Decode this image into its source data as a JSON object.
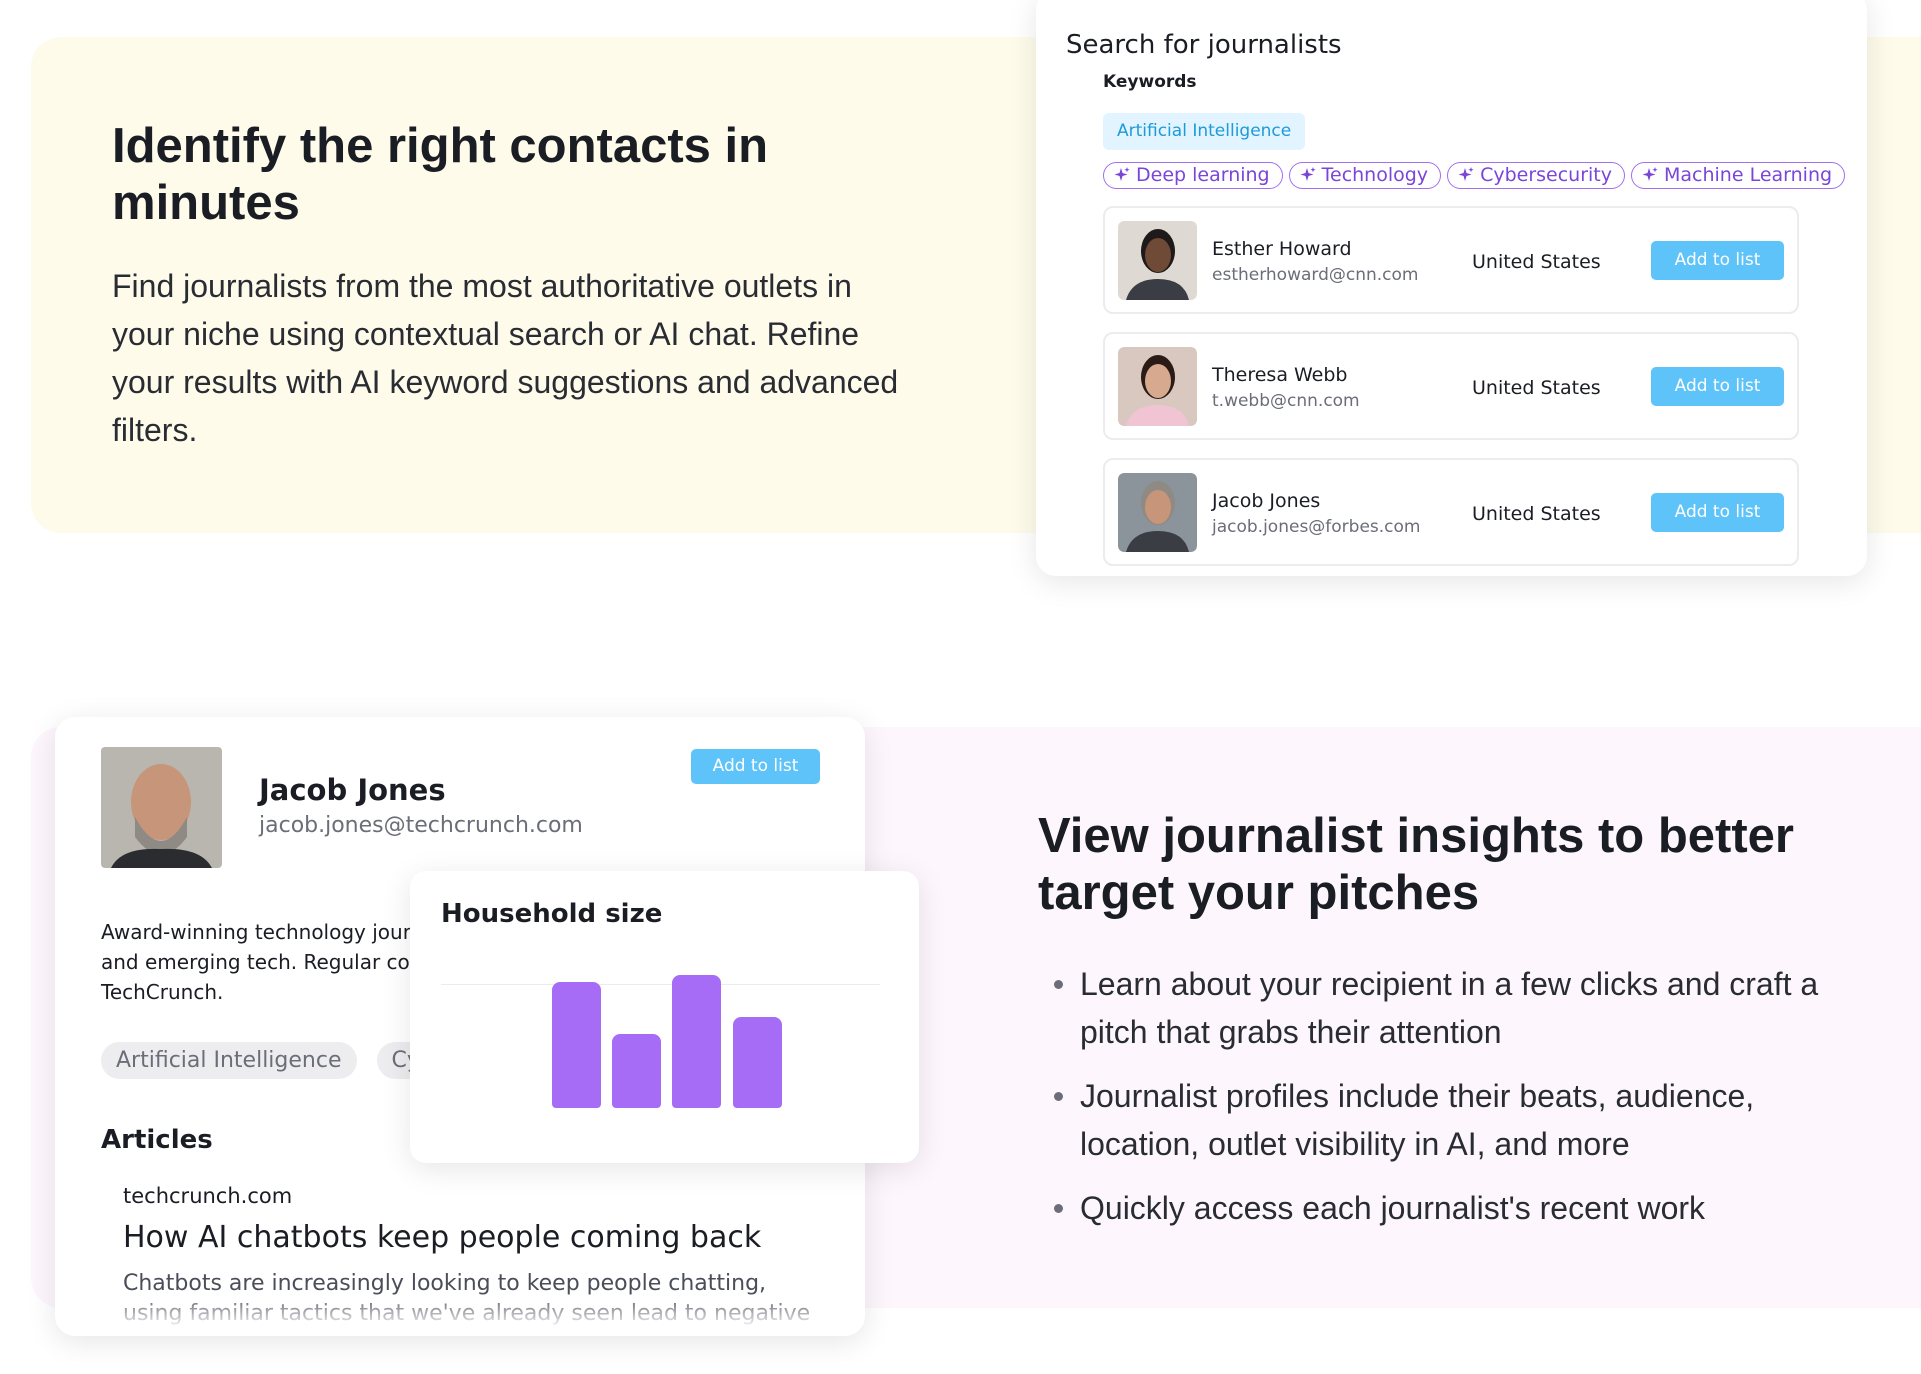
{
  "feature_1": {
    "title": "Identify the right contacts in minutes",
    "body": "Find journalists from the most authoritative outlets in your niche using contextual search or AI chat. Refine your results with AI keyword suggestions and advanced filters."
  },
  "search_card": {
    "title": "Search for journalists",
    "keywords_label": "Keywords",
    "selected_keyword": "Artificial Intelligence",
    "suggestions": [
      "Deep learning",
      "Technology",
      "Cybersecurity",
      "Machine Learning"
    ],
    "results": [
      {
        "name": "Esther Howard",
        "email": "estherhoward@cnn.com",
        "country": "United States",
        "action": "Add to list"
      },
      {
        "name": "Theresa Webb",
        "email": "t.webb@cnn.com",
        "country": "United States",
        "action": "Add to list"
      },
      {
        "name": "Jacob Jones",
        "email": "jacob.jones@forbes.com",
        "country": "United States",
        "action": "Add to list"
      }
    ]
  },
  "profile_card": {
    "name": "Jacob Jones",
    "email": "jacob.jones@techcrunch.com",
    "action": "Add to list",
    "bio": "Award-winning technology journalist covering AI, cybersecurity, and emerging tech. Regular contributor to WIRED and TechCrunch.",
    "tags": [
      "Artificial Intelligence",
      "Cybersecurity"
    ],
    "articles_label": "Articles",
    "article": {
      "source": "techcrunch.com",
      "title": "How AI chatbots keep people coming back",
      "snippet": "Chatbots are increasingly looking to keep people chatting, using familiar tactics that we've already seen lead to negative"
    }
  },
  "household_card": {
    "title": "Household size"
  },
  "feature_2": {
    "title": "View journalist insights to better target your pitches",
    "bullets": [
      "Learn about your recipient in a few clicks and craft a pitch that grabs their attention",
      "Journalist profiles include their beats, audience, location, outlet visibility in AI, and more",
      "Quickly access each journalist's recent work"
    ]
  }
}
